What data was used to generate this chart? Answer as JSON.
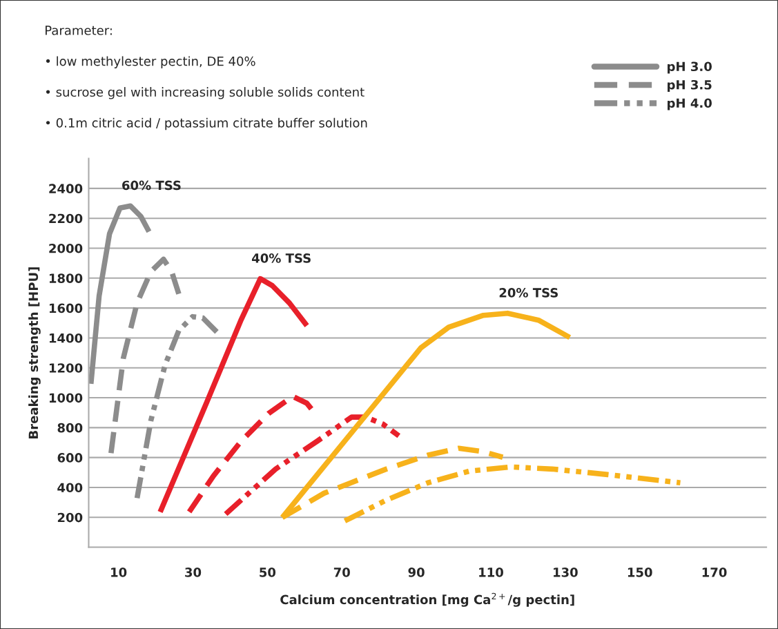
{
  "chart_data": {
    "type": "line",
    "xlabel": "Calcium concentration [mg Ca$^{2+}$/g pectin]",
    "ylabel": "Breaking strength [HPU]",
    "xlim": [
      2,
      184
    ],
    "ylim": [
      0,
      2600
    ],
    "xticks": [
      10,
      30,
      50,
      70,
      90,
      110,
      130,
      150,
      170
    ],
    "yticks": [
      200,
      400,
      600,
      800,
      1000,
      1200,
      1400,
      1600,
      1800,
      2000,
      2200,
      2400
    ],
    "grid": "y",
    "legend": "top right",
    "annotations": [
      "Parameter:",
      "• low methylester pectin, DE 40%",
      "• sucrose gel with increasing soluble solids content",
      "• 0.1m citric acid / potassium citrate buffer solution",
      "60% TSS",
      "40% TSS",
      "20% TSS"
    ],
    "series": [
      {
        "name": "pH 3.0",
        "color": "#8c8c8c",
        "line_style": "solid",
        "x": [
          2.6,
          4.8,
          7.6,
          10.4,
          13.2,
          16,
          18.2
        ],
        "values": [
          1093,
          1681,
          2097,
          2269,
          2283,
          2213,
          2111
        ]
      },
      {
        "name": "pH 3.5",
        "color": "#8c8c8c",
        "line_style": "dashed",
        "x": [
          8,
          11.3,
          15,
          18.7,
          22.1,
          24.3,
          26.5
        ],
        "values": [
          630,
          1264,
          1634,
          1843,
          1926,
          1843,
          1671
        ]
      },
      {
        "name": "pH 4.0",
        "color": "#8c8c8c",
        "line_style": "dotted",
        "x": [
          15,
          18.7,
          22.5,
          26.2,
          29.9,
          32.7,
          36.4
        ],
        "values": [
          329,
          847,
          1218,
          1449,
          1542,
          1533,
          1440
        ]
      },
      {
        "color": "#e8202a",
        "line_style": "solid",
        "x": [
          21.2,
          33.6,
          42.9,
          48.1,
          51.3,
          55.9,
          60.6
        ],
        "values": [
          236,
          963,
          1519,
          1796,
          1750,
          1634,
          1482
        ]
      },
      {
        "color": "#e8202a",
        "line_style": "dashed",
        "x": [
          29,
          35.5,
          42.9,
          50.3,
          56.8,
          60.6,
          62.8
        ],
        "values": [
          236,
          477,
          708,
          894,
          1009,
          963,
          894
        ]
      },
      {
        "color": "#e8202a",
        "line_style": "dotted",
        "x": [
          38.8,
          52.2,
          63.3,
          72.6,
          76.4,
          81,
          85.3
        ],
        "values": [
          222,
          523,
          708,
          870,
          870,
          824,
          745
        ]
      },
      {
        "color": "#f7b21b",
        "line_style": "solid",
        "x": [
          54,
          91.2,
          98.7,
          108,
          114.5,
          122.8,
          131.2
        ],
        "values": [
          199,
          1333,
          1472,
          1551,
          1565,
          1519,
          1403
        ]
      },
      {
        "color": "#f7b21b",
        "line_style": "dashed",
        "x": [
          54,
          65.2,
          81.9,
          93.1,
          101.4,
          108,
          113.2
        ],
        "values": [
          199,
          361,
          523,
          616,
          662,
          639,
          602
        ]
      },
      {
        "color": "#f7b21b",
        "line_style": "dotted",
        "x": [
          70.8,
          81.9,
          93.1,
          104.2,
          115.4,
          126.5,
          141.4,
          160.9
        ],
        "values": [
          176,
          315,
          431,
          509,
          537,
          523,
          486,
          431
        ]
      }
    ]
  }
}
